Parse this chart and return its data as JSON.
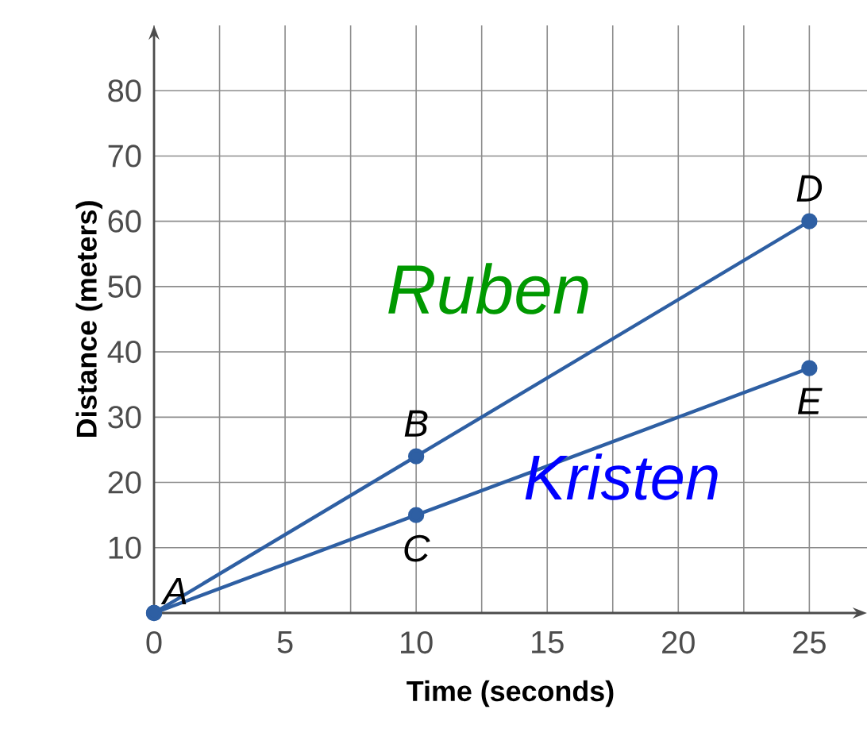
{
  "chart_data": {
    "type": "line",
    "xlabel": "Time (seconds)",
    "ylabel": "Distance (meters)",
    "xlim": [
      0,
      27.2
    ],
    "ylim": [
      0,
      90
    ],
    "xticks": [
      0,
      {
        "value": 2.5,
        "label": null
      },
      5,
      {
        "value": 7.5,
        "label": null
      },
      10,
      {
        "value": 12.5,
        "label": null
      },
      15,
      {
        "value": 17.5,
        "label": null
      },
      20,
      {
        "value": 22.5,
        "label": null
      },
      25
    ],
    "yticks": [
      10,
      20,
      30,
      40,
      50,
      60,
      70,
      80
    ],
    "grid": true,
    "marker": "circle",
    "line_style": "solid",
    "series": [
      {
        "name": "Ruben",
        "color": "#2e5fa3",
        "x": [
          0,
          10,
          25
        ],
        "values": [
          0,
          24,
          60
        ]
      },
      {
        "name": "Kristen",
        "color": "#2e5fa3",
        "x": [
          0,
          10,
          25
        ],
        "values": [
          0,
          15,
          37.5
        ]
      }
    ],
    "annotations": [
      {
        "text": "A",
        "x": 0,
        "y": 0
      },
      {
        "text": "B",
        "x": 10,
        "y": 24
      },
      {
        "text": "C",
        "x": 10,
        "y": 15
      },
      {
        "text": "D",
        "x": 25,
        "y": 60
      },
      {
        "text": "E",
        "x": 25,
        "y": 37.5
      }
    ]
  }
}
